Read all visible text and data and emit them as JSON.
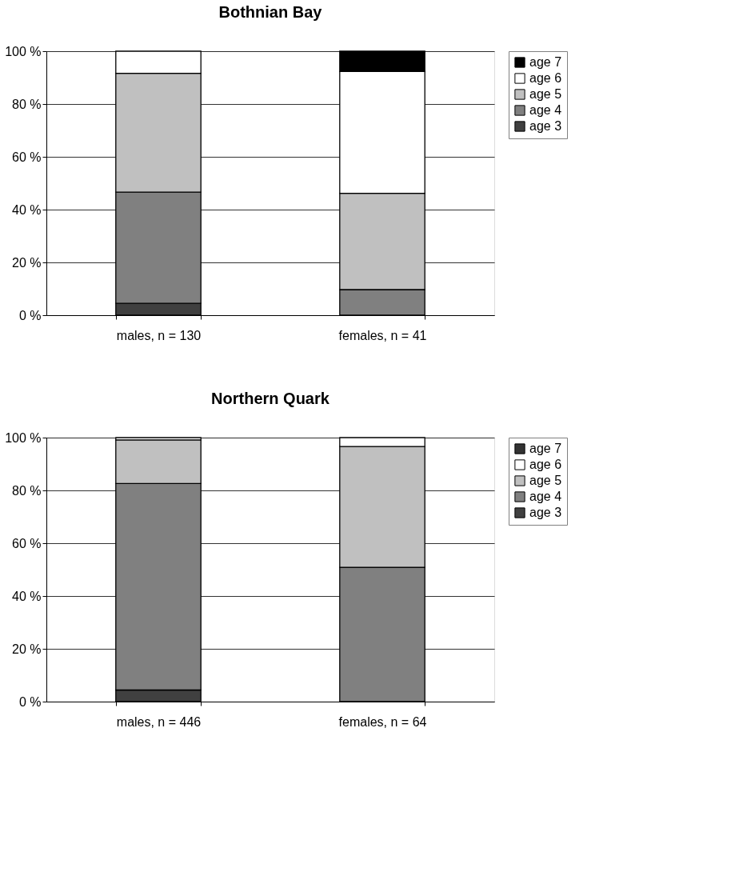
{
  "chart_data": [
    {
      "type": "bar",
      "title": "Bothnian Bay",
      "stacked": true,
      "categories": [
        "males, n = 130",
        "females, n = 41"
      ],
      "ylim": [
        0,
        100
      ],
      "yticks": [
        {
          "value": 0,
          "label": "0 %"
        },
        {
          "value": 20,
          "label": "20 %"
        },
        {
          "value": 40,
          "label": "40 %"
        },
        {
          "value": 60,
          "label": "60 %"
        },
        {
          "value": 80,
          "label": "80 %"
        },
        {
          "value": 100,
          "label": "100 %"
        }
      ],
      "grid": "y",
      "legend": "right",
      "series": [
        {
          "name": "age 3",
          "color": "#404040",
          "values": [
            4.5,
            null
          ]
        },
        {
          "name": "age 4",
          "color": "#808080",
          "values": [
            42.1,
            9.7
          ]
        },
        {
          "name": "age 5",
          "color": "#c0c0c0",
          "values": [
            45.0,
            36.5
          ]
        },
        {
          "name": "age 6",
          "color": "#ffffff",
          "values": [
            8.4,
            46.1
          ]
        },
        {
          "name": "age 7",
          "color": "#000000",
          "values": [
            null,
            7.7
          ]
        }
      ]
    },
    {
      "type": "bar",
      "title": "Northern Quark",
      "stacked": true,
      "categories": [
        "males, n = 446",
        "females, n = 64"
      ],
      "ylim": [
        0,
        100
      ],
      "yticks": [
        {
          "value": 0,
          "label": "0 %"
        },
        {
          "value": 20,
          "label": "20 %"
        },
        {
          "value": 40,
          "label": "40 %"
        },
        {
          "value": 60,
          "label": "60 %"
        },
        {
          "value": 80,
          "label": "80 %"
        },
        {
          "value": 100,
          "label": "100 %"
        }
      ],
      "grid": "y",
      "legend": "right",
      "series": [
        {
          "name": "age 3",
          "color": "#404040",
          "values": [
            4.4,
            null
          ]
        },
        {
          "name": "age 4",
          "color": "#808080",
          "values": [
            78.2,
            50.9
          ]
        },
        {
          "name": "age 5",
          "color": "#c0c0c0",
          "values": [
            16.5,
            45.7
          ]
        },
        {
          "name": "age 6",
          "color": "#ffffff",
          "values": [
            0.9,
            3.4
          ]
        },
        {
          "name": "age 7",
          "color": "#333333",
          "values": [
            null,
            null
          ]
        }
      ]
    }
  ]
}
